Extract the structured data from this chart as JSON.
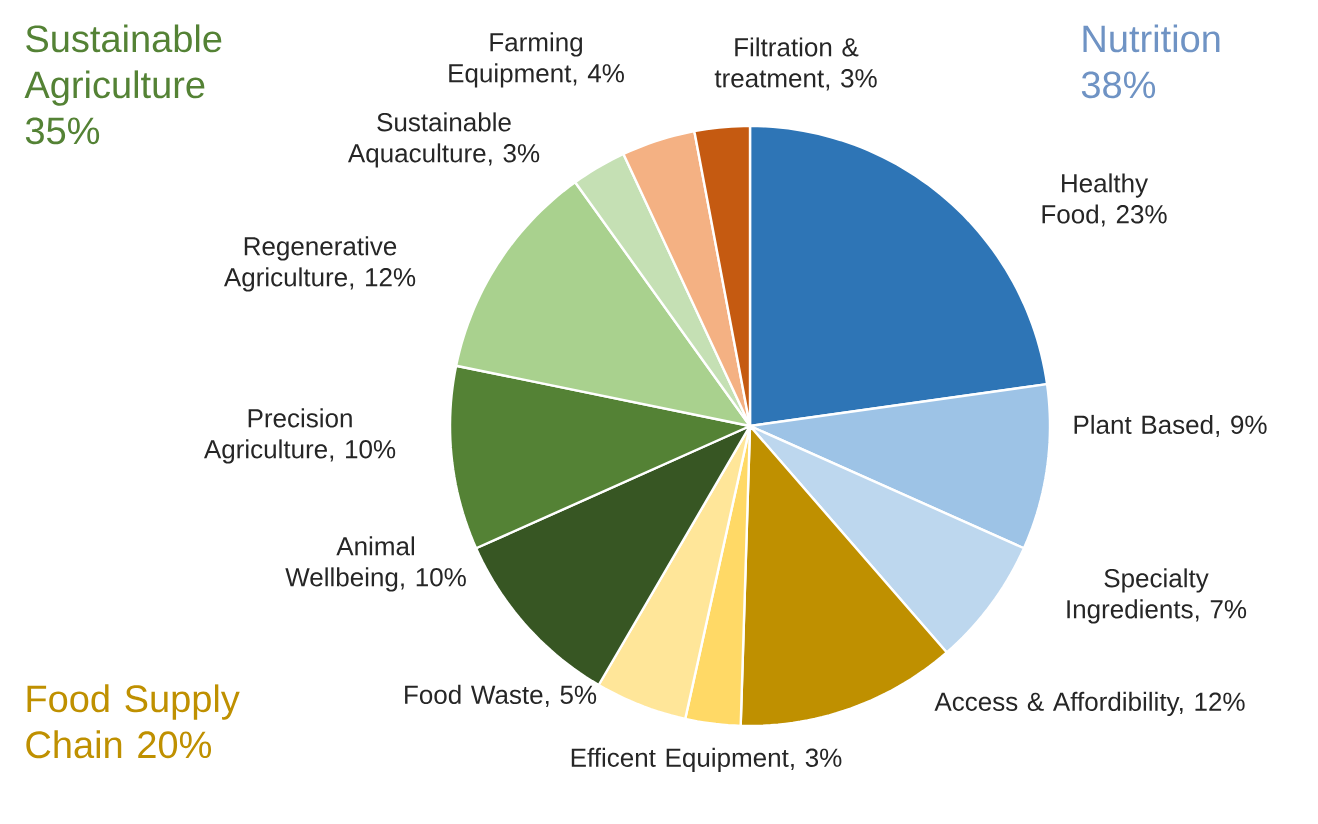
{
  "chart_data": {
    "type": "pie",
    "categories": [
      "Healthy Food, 23%",
      "Plant Based, 9%",
      "Specialty Ingredients, 7%",
      "Access & Affordibility, 12%",
      "Efficent Equipment, 3%",
      "Food Waste, 5%",
      "Animal Wellbeing, 10%",
      "Precision Agriculture, 10%",
      "Regenerative Agriculture, 12%",
      "Sustainable Aquaculture, 3%",
      "Farming Equipment, 4%",
      "Filtration & treatment, 3%"
    ],
    "values": [
      23,
      9,
      7,
      12,
      3,
      5,
      10,
      10,
      12,
      3,
      4,
      3
    ],
    "colors": [
      "#2e75b6",
      "#9dc3e6",
      "#bdd7ee",
      "#bf9000",
      "#ffd966",
      "#ffe699",
      "#375623",
      "#548235",
      "#a9d18e",
      "#c5e0b4",
      "#f4b183",
      "#c55a11"
    ],
    "annotations": [
      "Sustainable Agriculture 35%",
      "Nutrition 38%",
      "Food Supply Chain 20%"
    ]
  }
}
